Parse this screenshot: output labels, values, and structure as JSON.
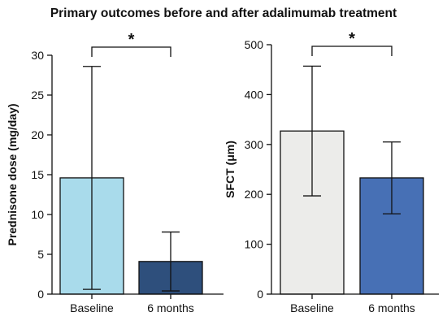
{
  "title": "Primary outcomes before and after adalimumab treatment",
  "chart_data": [
    {
      "type": "bar",
      "categories": [
        "Baseline",
        "6 months"
      ],
      "values": [
        14.6,
        4.1
      ],
      "error": [
        14.0,
        3.7
      ],
      "ylabel": "Prednisone dose (mg/day)",
      "ylim": [
        0,
        30
      ],
      "yticks": [
        0,
        5,
        10,
        15,
        20,
        25,
        30
      ],
      "colors": [
        "#a9dbeb",
        "#2e4f7c"
      ],
      "significance": "*",
      "grid": false
    },
    {
      "type": "bar",
      "categories": [
        "Baseline",
        "6 months"
      ],
      "values": [
        327,
        233
      ],
      "error": [
        130,
        72
      ],
      "ylabel": "SFCT (μm)",
      "ylim": [
        0,
        500
      ],
      "yticks": [
        0,
        100,
        200,
        300,
        400,
        500
      ],
      "colors": [
        "#ececea",
        "#4770b5"
      ],
      "significance": "*",
      "grid": false
    }
  ]
}
